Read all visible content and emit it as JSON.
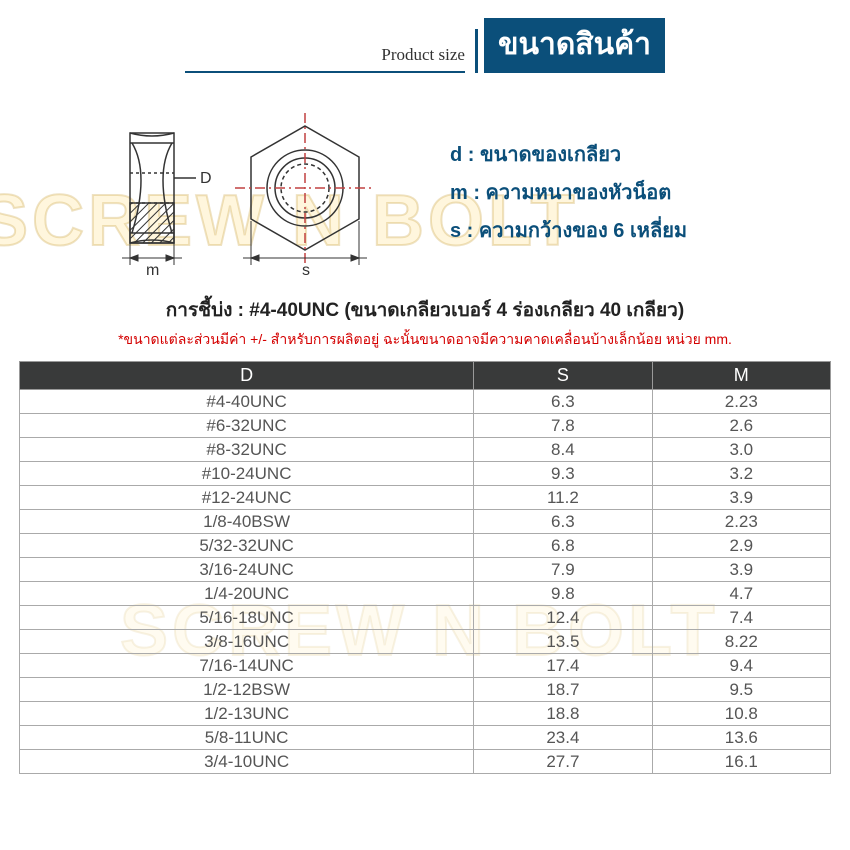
{
  "watermark": "SCREW N BOLT",
  "header": {
    "product_size_label": "Product size",
    "title_th": "ขนาดสินค้า"
  },
  "legend": {
    "d": "d :  ขนาดของเกลียว",
    "m": "m : ความหนาของหัวน็อต",
    "s": "s :  ความกว้างของ 6 เหลี่ยม"
  },
  "naming_line": "การชี้บ่ง : #4-40UNC (ขนาดเกลียวเบอร์ 4 ร่องเกลียว 40 เกลียว)",
  "disclaimer": "*ขนาดแต่ละส่วนมีค่า +/- สำหรับการผลิตอยู่ ฉะนั้นขนาดอาจมีความคาดเคลื่อนบ้างเล็กน้อย หน่วย mm.",
  "table": {
    "columns": [
      "D",
      "S",
      "M"
    ],
    "header_bg": "#393a3a",
    "header_fg": "#ffffff",
    "border_color": "#aaaaaa",
    "cell_fg": "#555555",
    "col_widths": [
      "56%",
      "22%",
      "22%"
    ],
    "rows": [
      [
        "#4-40UNC",
        "6.3",
        "2.23"
      ],
      [
        "#6-32UNC",
        "7.8",
        "2.6"
      ],
      [
        "#8-32UNC",
        "8.4",
        "3.0"
      ],
      [
        "#10-24UNC",
        "9.3",
        "3.2"
      ],
      [
        "#12-24UNC",
        "11.2",
        "3.9"
      ],
      [
        "1/8-40BSW",
        "6.3",
        "2.23"
      ],
      [
        "5/32-32UNC",
        "6.8",
        "2.9"
      ],
      [
        "3/16-24UNC",
        "7.9",
        "3.9"
      ],
      [
        "1/4-20UNC",
        "9.8",
        "4.7"
      ],
      [
        "5/16-18UNC",
        "12.4",
        "7.4"
      ],
      [
        "3/8-16UNC",
        "13.5",
        "8.22"
      ],
      [
        "7/16-14UNC",
        "17.4",
        "9.4"
      ],
      [
        "1/2-12BSW",
        "18.7",
        "9.5"
      ],
      [
        "1/2-13UNC",
        "18.8",
        "10.8"
      ],
      [
        "5/8-11UNC",
        "23.4",
        "13.6"
      ],
      [
        "3/4-10UNC",
        "27.7",
        "16.1"
      ]
    ]
  },
  "diagram": {
    "labels": {
      "D": "D",
      "m": "m",
      "s": "s"
    },
    "stroke": "#333333",
    "centerline": "#c04040"
  },
  "colors": {
    "brand": "#0b4f7a",
    "red": "#d40000",
    "watermark_fill": "rgba(255,220,120,0.25)",
    "watermark_stroke": "rgba(200,160,60,0.3)"
  }
}
